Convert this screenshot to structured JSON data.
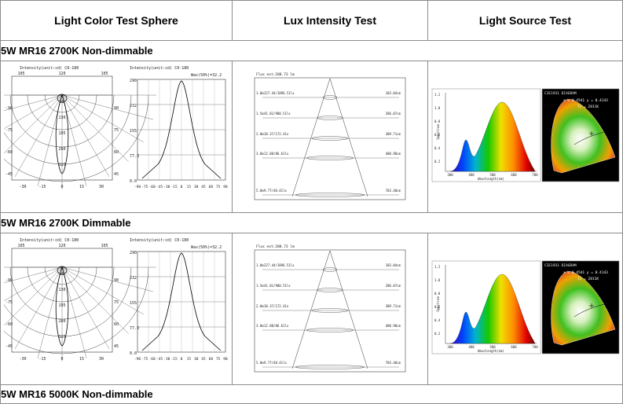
{
  "headers": [
    "Light Color Test Sphere",
    "Lux Intensity Test",
    "Light Source Test"
  ],
  "products": [
    {
      "title": "5W MR16 2700K Non-dimmable",
      "polar": {
        "title": "Intensity(unit:cd) C0-180",
        "top_ticks": [
          "105",
          "120",
          "105"
        ],
        "left_ticks": [
          "-90",
          "-75",
          "-60",
          "-45"
        ],
        "right_ticks": [
          "90",
          "75",
          "60",
          "45"
        ],
        "center_labels": [
          "65",
          "130",
          "195",
          "260",
          "325"
        ],
        "bottom_ticks": [
          "-30",
          "-15",
          "0",
          "15",
          "30"
        ]
      },
      "linear": {
        "title": "Intensity(unit:cd) C0-180",
        "subtitle": "Wav(50%)=32.2",
        "y_ticks": [
          "290",
          "232",
          "155",
          "77.3",
          "0.0"
        ],
        "x_ticks": [
          "-90",
          "-75",
          "-60",
          "-45",
          "-30",
          "-15",
          "0",
          "15",
          "30",
          "45",
          "60",
          "75",
          "90"
        ]
      },
      "lux": {
        "header": "Flux ext:288.73 lm",
        "rows": [
          {
            "dist": "1.0m",
            "left": "227.44/1896.51lx",
            "right": "103.04cm"
          },
          {
            "dist": "1.5m",
            "left": "41.81/988.51lx",
            "right": "206.07cm"
          },
          {
            "dist": "2.0m",
            "left": "10.37/172.41x",
            "right": "309.71cm"
          },
          {
            "dist": "3.0m",
            "left": "12.88/86.61lx",
            "right": "480.98cm"
          },
          {
            "dist": "5.0m",
            "left": "9.77/48.41lx",
            "right": "703.40cm"
          }
        ]
      },
      "spectrum": {
        "y_label": "Spectrum",
        "x_label": "Wavelength(nm)",
        "y_ticks": [
          "1.2",
          "1.0",
          "0.8",
          "0.6",
          "0.4",
          "0.2"
        ],
        "x_ticks": [
          "380",
          "480",
          "580",
          "680",
          "780"
        ],
        "cie_title": "CIE1931 DIAGRAM",
        "cie_coords": "x = 0.4541  y = 0.4143",
        "cie_tc": "Tc = 2811K"
      }
    },
    {
      "title": "5W MR16 2700K Dimmable",
      "polar": {
        "title": "Intensity(unit:cd) C0-180",
        "top_ticks": [
          "105",
          "120",
          "105"
        ],
        "left_ticks": [
          "-90",
          "-75",
          "-60",
          "-45"
        ],
        "right_ticks": [
          "90",
          "75",
          "60",
          "45"
        ],
        "center_labels": [
          "65",
          "130",
          "195",
          "260",
          "325"
        ],
        "bottom_ticks": [
          "-30",
          "-15",
          "0",
          "15",
          "30"
        ]
      },
      "linear": {
        "title": "Intensity(unit:cd) C0-180",
        "subtitle": "Wav(50%)=32.2",
        "y_ticks": [
          "290",
          "232",
          "155",
          "77.3",
          "0.0"
        ],
        "x_ticks": [
          "-90",
          "-75",
          "-60",
          "-45",
          "-30",
          "-15",
          "0",
          "15",
          "30",
          "45",
          "60",
          "75",
          "90"
        ]
      },
      "lux": {
        "header": "Flux ext:288.73 lm",
        "rows": [
          {
            "dist": "1.0m",
            "left": "227.44/1896.51lx",
            "right": "103.04cm"
          },
          {
            "dist": "1.5m",
            "left": "41.81/988.51lx",
            "right": "206.07cm"
          },
          {
            "dist": "2.0m",
            "left": "10.37/172.41x",
            "right": "309.71cm"
          },
          {
            "dist": "3.0m",
            "left": "12.88/86.61lx",
            "right": "480.98cm"
          },
          {
            "dist": "5.0m",
            "left": "9.77/48.41lx",
            "right": "703.40cm"
          }
        ]
      },
      "spectrum": {
        "y_label": "Spectrum",
        "x_label": "Wavelength(nm)",
        "y_ticks": [
          "1.2",
          "1.0",
          "0.8",
          "0.6",
          "0.4",
          "0.2"
        ],
        "x_ticks": [
          "380",
          "480",
          "580",
          "680",
          "780"
        ],
        "cie_title": "CIE1931 DIAGRAM",
        "cie_coords": "x = 0.4541  y = 0.4143",
        "cie_tc": "Tc = 2811K"
      }
    },
    {
      "title": "5W MR16 5000K Non-dimmable"
    }
  ]
}
